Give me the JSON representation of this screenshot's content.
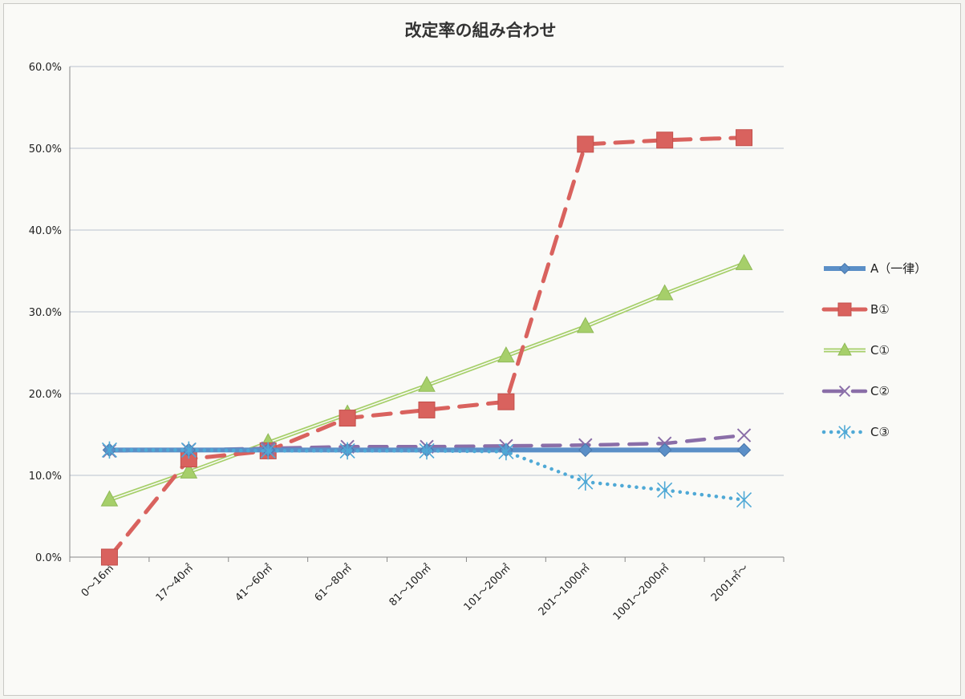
{
  "chart_data": {
    "type": "line",
    "title": "改定率の組み合わせ",
    "xlabel": "",
    "ylabel": "",
    "ylim": [
      0,
      60
    ],
    "yticks": [
      "0.0%",
      "10.0%",
      "20.0%",
      "30.0%",
      "40.0%",
      "50.0%",
      "60.0%"
    ],
    "grid": true,
    "legend_position": "right",
    "categories": [
      "0～16㎡",
      "17～40㎡",
      "41～60㎡",
      "61～80㎡",
      "81～100㎡",
      "101～200㎡",
      "201～1000㎡",
      "1001～2000㎡",
      "2001㎡～"
    ],
    "series": [
      {
        "name": "A（一律）",
        "color": "#5b8fc7",
        "marker": "diamond",
        "line": "solid-thick",
        "values": [
          13.1,
          13.1,
          13.1,
          13.1,
          13.1,
          13.1,
          13.1,
          13.1,
          13.1
        ]
      },
      {
        "name": "B①",
        "color": "#d9625e",
        "marker": "square",
        "line": "dashed",
        "values": [
          0.0,
          12.0,
          13.0,
          17.0,
          18.0,
          19.0,
          50.5,
          51.0,
          51.3
        ]
      },
      {
        "name": "C①",
        "color": "#a6cf6a",
        "marker": "triangle",
        "line": "double",
        "values": [
          7.0,
          10.4,
          14.0,
          17.5,
          21.0,
          24.6,
          28.2,
          32.2,
          35.9
        ]
      },
      {
        "name": "C②",
        "color": "#8a6ea8",
        "marker": "x",
        "line": "dashed",
        "values": [
          13.0,
          13.1,
          13.3,
          13.5,
          13.5,
          13.6,
          13.7,
          13.9,
          14.9
        ]
      },
      {
        "name": "C③",
        "color": "#4fa9d6",
        "marker": "star",
        "line": "dotted",
        "values": [
          13.1,
          13.1,
          13.0,
          13.0,
          13.0,
          12.9,
          9.2,
          8.2,
          7.0
        ]
      }
    ]
  }
}
